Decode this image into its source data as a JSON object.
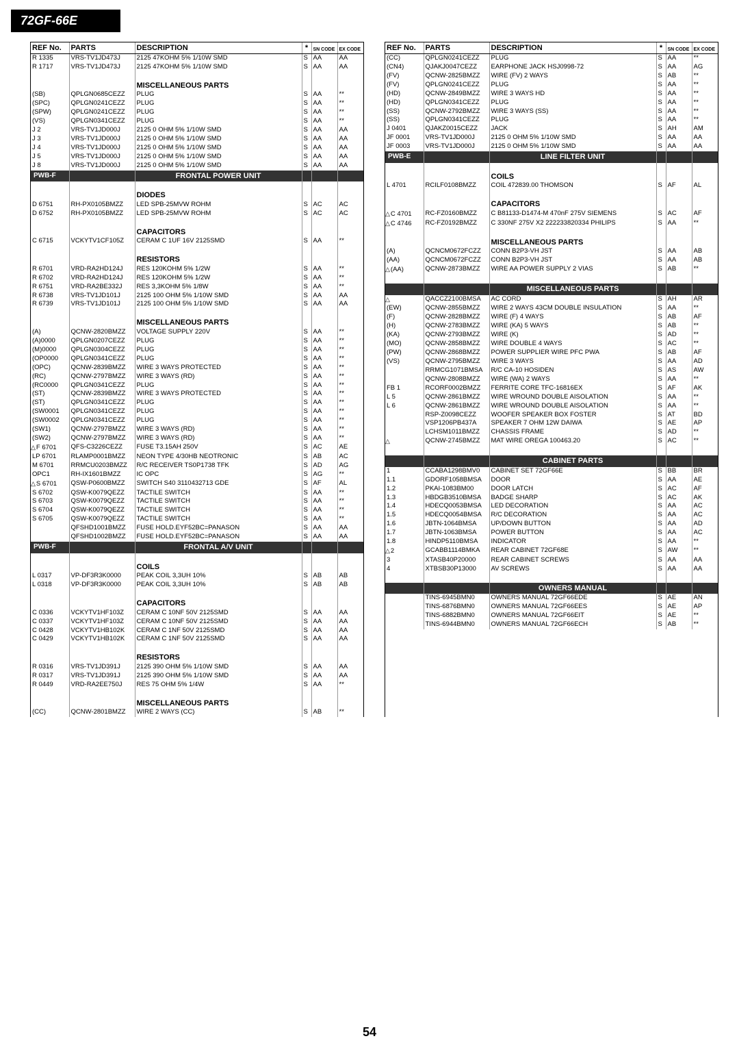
{
  "model": "72GF-66E",
  "page_number": "54",
  "columns": {
    "refno": "REF No.",
    "parts": "PARTS",
    "desc": "DESCRIPTION",
    "star": "*",
    "sn": "SN CODE",
    "ex": "EX CODE"
  },
  "left": [
    {
      "ref": "R 1335",
      "parts": "VRS-TV1JD473J",
      "desc": "2125  47KOHM 5% 1/10W SMD",
      "s": "S",
      "sn": "AA",
      "ex": "AA"
    },
    {
      "ref": "R 1717",
      "parts": "VRS-TV1JD473J",
      "desc": "2125  47KOHM 5% 1/10W SMD",
      "s": "S",
      "sn": "AA",
      "ex": "AA"
    },
    {
      "blank": true
    },
    {
      "sub": "MISCELLANEOUS PARTS"
    },
    {
      "ref": "(SB)",
      "parts": "QPLGN0685CEZZ",
      "desc": "PLUG",
      "s": "S",
      "sn": "AA",
      "ex": "**"
    },
    {
      "ref": "(SPC)",
      "parts": "QPLGN0241CEZZ",
      "desc": "PLUG",
      "s": "S",
      "sn": "AA",
      "ex": "**"
    },
    {
      "ref": "(SPW)",
      "parts": "QPLGN0241CEZZ",
      "desc": "PLUG",
      "s": "S",
      "sn": "AA",
      "ex": "**"
    },
    {
      "ref": "(VS)",
      "parts": "QPLGN0341CEZZ",
      "desc": "PLUG",
      "s": "S",
      "sn": "AA",
      "ex": "**"
    },
    {
      "ref": "J 2",
      "parts": "VRS-TV1JD000J",
      "desc": "2125   0 OHM 5% 1/10W SMD",
      "s": "S",
      "sn": "AA",
      "ex": "AA"
    },
    {
      "ref": "J 3",
      "parts": "VRS-TV1JD000J",
      "desc": "2125   0 OHM 5% 1/10W SMD",
      "s": "S",
      "sn": "AA",
      "ex": "AA"
    },
    {
      "ref": "J 4",
      "parts": "VRS-TV1JD000J",
      "desc": "2125   0 OHM 5% 1/10W SMD",
      "s": "S",
      "sn": "AA",
      "ex": "AA"
    },
    {
      "ref": "J 5",
      "parts": "VRS-TV1JD000J",
      "desc": "2125   0 OHM 5% 1/10W SMD",
      "s": "S",
      "sn": "AA",
      "ex": "AA"
    },
    {
      "ref": "J 8",
      "parts": "VRS-TV1JD000J",
      "desc": "2125   0 OHM 5% 1/10W SMD",
      "s": "S",
      "sn": "AA",
      "ex": "AA"
    },
    {
      "section": true,
      "ref": "PWB-F",
      "desc": "FRONTAL POWER UNIT"
    },
    {
      "blank": true
    },
    {
      "sub": "DIODES"
    },
    {
      "ref": "D 6751",
      "parts": "RH-PX0105BMZZ",
      "desc": "LED SPB-25MVW ROHM",
      "s": "S",
      "sn": "AC",
      "ex": "AC"
    },
    {
      "ref": "D 6752",
      "parts": "RH-PX0105BMZZ",
      "desc": "LED SPB-25MVW ROHM",
      "s": "S",
      "sn": "AC",
      "ex": "AC"
    },
    {
      "blank": true
    },
    {
      "sub": "CAPACITORS"
    },
    {
      "ref": "C 6715",
      "parts": "VCKYTV1CF105Z",
      "desc": "CERAM C   1UF 16V 2125SMD",
      "s": "S",
      "sn": "AA",
      "ex": "**"
    },
    {
      "blank": true
    },
    {
      "sub": "RESISTORS"
    },
    {
      "ref": "R 6701",
      "parts": "VRD-RA2HD124J",
      "desc": "RES  120KOHM  5%  1/2W",
      "s": "S",
      "sn": "AA",
      "ex": "**"
    },
    {
      "ref": "R 6702",
      "parts": "VRD-RA2HD124J",
      "desc": "RES  120KOHM  5%  1/2W",
      "s": "S",
      "sn": "AA",
      "ex": "**"
    },
    {
      "ref": "R 6751",
      "parts": "VRD-RA2BE332J",
      "desc": "RES  3,3KOHM  5%  1/8W",
      "s": "S",
      "sn": "AA",
      "ex": "**"
    },
    {
      "ref": "R 6738",
      "parts": "VRS-TV1JD101J",
      "desc": "2125 100 OHM 5% 1/10W SMD",
      "s": "S",
      "sn": "AA",
      "ex": "AA"
    },
    {
      "ref": "R 6739",
      "parts": "VRS-TV1JD101J",
      "desc": "2125 100 OHM 5% 1/10W SMD",
      "s": "S",
      "sn": "AA",
      "ex": "AA"
    },
    {
      "blank": true
    },
    {
      "sub": "MISCELLANEOUS PARTS"
    },
    {
      "ref": "(A)",
      "parts": "QCNW-2820BMZZ",
      "desc": "VOLTAGE SUPPLY 220V",
      "s": "S",
      "sn": "AA",
      "ex": "**"
    },
    {
      "ref": "(A)0000",
      "parts": "QPLGN0207CEZZ",
      "desc": "PLUG",
      "s": "S",
      "sn": "AA",
      "ex": "**"
    },
    {
      "ref": "(M)0000",
      "parts": "QPLGN0304CEZZ",
      "desc": "PLUG",
      "s": "S",
      "sn": "AA",
      "ex": "**"
    },
    {
      "ref": "(OP0000",
      "parts": "QPLGN0341CEZZ",
      "desc": "PLUG",
      "s": "S",
      "sn": "AA",
      "ex": "**"
    },
    {
      "ref": "(OPC)",
      "parts": "QCNW-2839BMZZ",
      "desc": "WIRE 3 WAYS PROTECTED",
      "s": "S",
      "sn": "AA",
      "ex": "**"
    },
    {
      "ref": "(RC)",
      "parts": "QCNW-2797BMZZ",
      "desc": "WIRE  3 WAYS (RD)",
      "s": "S",
      "sn": "AA",
      "ex": "**"
    },
    {
      "ref": "(RC0000",
      "parts": "QPLGN0341CEZZ",
      "desc": "PLUG",
      "s": "S",
      "sn": "AA",
      "ex": "**"
    },
    {
      "ref": "(ST)",
      "parts": "QCNW-2839BMZZ",
      "desc": "WIRE 3 WAYS PROTECTED",
      "s": "S",
      "sn": "AA",
      "ex": "**"
    },
    {
      "ref": "(ST)",
      "parts": "QPLGN0341CEZZ",
      "desc": "PLUG",
      "s": "S",
      "sn": "AA",
      "ex": "**"
    },
    {
      "ref": "(SW0001",
      "parts": "QPLGN0341CEZZ",
      "desc": "PLUG",
      "s": "S",
      "sn": "AA",
      "ex": "**"
    },
    {
      "ref": "(SW0002",
      "parts": "QPLGN0341CEZZ",
      "desc": "PLUG",
      "s": "S",
      "sn": "AA",
      "ex": "**"
    },
    {
      "ref": "(SW1)",
      "parts": "QCNW-2797BMZZ",
      "desc": "WIRE  3 WAYS (RD)",
      "s": "S",
      "sn": "AA",
      "ex": "**"
    },
    {
      "ref": "(SW2)",
      "parts": "QCNW-2797BMZZ",
      "desc": "WIRE  3 WAYS (RD)",
      "s": "S",
      "sn": "AA",
      "ex": "**"
    },
    {
      "ref": "F 6701",
      "tri": true,
      "parts": "QFS-C3226CEZZ",
      "desc": "FUSE T3.15AH 250V",
      "s": "S",
      "sn": "AC",
      "ex": "AE"
    },
    {
      "ref": "LP 6701",
      "parts": "RLAMP0001BMZZ",
      "desc": "NEON TYPE 4/30HB NEOTRONIC",
      "s": "S",
      "sn": "AB",
      "ex": "AC"
    },
    {
      "ref": "M 6701",
      "parts": "RRMCU0203BMZZ",
      "desc": "R/C RECEIVER TS0P1738 TFK",
      "s": "S",
      "sn": "AD",
      "ex": "AG"
    },
    {
      "ref": "OPC1",
      "parts": "RH-IX1601BMZZ",
      "desc": "IC OPC",
      "s": "S",
      "sn": "AG",
      "ex": "**"
    },
    {
      "ref": "S 6701",
      "tri": true,
      "parts": "QSW-P0600BMZZ",
      "desc": "SWITCH S40 3110432713 GDE",
      "s": "S",
      "sn": "AF",
      "ex": "AL"
    },
    {
      "ref": "S 6702",
      "parts": "QSW-K0079QEZZ",
      "desc": "TACTILE SWITCH",
      "s": "S",
      "sn": "AA",
      "ex": "**"
    },
    {
      "ref": "S 6703",
      "parts": "QSW-K0079QEZZ",
      "desc": "TACTILE SWITCH",
      "s": "S",
      "sn": "AA",
      "ex": "**"
    },
    {
      "ref": "S 6704",
      "parts": "QSW-K0079QEZZ",
      "desc": "TACTILE SWITCH",
      "s": "S",
      "sn": "AA",
      "ex": "**"
    },
    {
      "ref": "S 6705",
      "parts": "QSW-K0079QEZZ",
      "desc": "TACTILE SWITCH",
      "s": "S",
      "sn": "AA",
      "ex": "**"
    },
    {
      "ref": "",
      "parts": "QFSHD1001BMZZ",
      "desc": "FUSE HOLD.EYF52BC=PANASON",
      "s": "S",
      "sn": "AA",
      "ex": "AA"
    },
    {
      "ref": "",
      "parts": "QFSHD1002BMZZ",
      "desc": "FUSE HOLD.EYF52BC=PANASON",
      "s": "S",
      "sn": "AA",
      "ex": "AA"
    },
    {
      "section": true,
      "ref": "PWB-F",
      "desc": "FRONTAL A/V UNIT"
    },
    {
      "blank": true
    },
    {
      "sub": "COILS"
    },
    {
      "ref": "L 0317",
      "parts": "VP-DF3R3K0000",
      "desc": "PEAK  COIL 3,3UH 10%",
      "s": "S",
      "sn": "AB",
      "ex": "AB"
    },
    {
      "ref": "L 0318",
      "parts": "VP-DF3R3K0000",
      "desc": "PEAK  COIL 3,3UH 10%",
      "s": "S",
      "sn": "AB",
      "ex": "AB"
    },
    {
      "blank": true
    },
    {
      "sub": "CAPACITORS"
    },
    {
      "ref": "C 0336",
      "parts": "VCKYTV1HF103Z",
      "desc": "CERAM C  10NF 50V 2125SMD",
      "s": "S",
      "sn": "AA",
      "ex": "AA"
    },
    {
      "ref": "C 0337",
      "parts": "VCKYTV1HF103Z",
      "desc": "CERAM C  10NF 50V 2125SMD",
      "s": "S",
      "sn": "AA",
      "ex": "AA"
    },
    {
      "ref": "C 0428",
      "parts": "VCKYTV1HB102K",
      "desc": "CERAM C   1NF 50V 2125SMD",
      "s": "S",
      "sn": "AA",
      "ex": "AA"
    },
    {
      "ref": "C 0429",
      "parts": "VCKYTV1HB102K",
      "desc": "CERAM C   1NF 50V 2125SMD",
      "s": "S",
      "sn": "AA",
      "ex": "AA"
    },
    {
      "blank": true
    },
    {
      "sub": "RESISTORS"
    },
    {
      "ref": "R 0316",
      "parts": "VRS-TV1JD391J",
      "desc": "2125 390 OHM 5% 1/10W SMD",
      "s": "S",
      "sn": "AA",
      "ex": "AA"
    },
    {
      "ref": "R 0317",
      "parts": "VRS-TV1JD391J",
      "desc": "2125 390 OHM 5% 1/10W SMD",
      "s": "S",
      "sn": "AA",
      "ex": "AA"
    },
    {
      "ref": "R 0449",
      "parts": "VRD-RA2EE750J",
      "desc": "RES  75 OHM  5%  1/4W",
      "s": "S",
      "sn": "AA",
      "ex": "**"
    },
    {
      "blank": true
    },
    {
      "sub": "MISCELLANEOUS PARTS"
    },
    {
      "ref": "(CC)",
      "parts": "QCNW-2801BMZZ",
      "desc": "WIRE 2 WAYS (CC)",
      "s": "S",
      "sn": "AB",
      "ex": "**"
    }
  ],
  "right": [
    {
      "ref": "(CC)",
      "parts": "QPLGN0241CEZZ",
      "desc": "PLUG",
      "s": "S",
      "sn": "AA",
      "ex": "**"
    },
    {
      "ref": "(CN4)",
      "parts": "QJAKJ0047CEZZ",
      "desc": "EARPHONE JACK HSJ0998-72",
      "s": "S",
      "sn": "AA",
      "ex": "AG"
    },
    {
      "ref": "(FV)",
      "parts": "QCNW-2825BMZZ",
      "desc": "WIRE (FV) 2 WAYS",
      "s": "S",
      "sn": "AB",
      "ex": "**"
    },
    {
      "ref": "(FV)",
      "parts": "QPLGN0241CEZZ",
      "desc": "PLUG",
      "s": "S",
      "sn": "AA",
      "ex": "**"
    },
    {
      "ref": "(HD)",
      "parts": "QCNW-2849BMZZ",
      "desc": "WIRE 3 WAYS HD",
      "s": "S",
      "sn": "AA",
      "ex": "**"
    },
    {
      "ref": "(HD)",
      "parts": "QPLGN0341CEZZ",
      "desc": "PLUG",
      "s": "S",
      "sn": "AA",
      "ex": "**"
    },
    {
      "ref": "(SS)",
      "parts": "QCNW-2792BMZZ",
      "desc": "WIRE  3 WAYS (SS)",
      "s": "S",
      "sn": "AA",
      "ex": "**"
    },
    {
      "ref": "(SS)",
      "parts": "QPLGN0341CEZZ",
      "desc": "PLUG",
      "s": "S",
      "sn": "AA",
      "ex": "**"
    },
    {
      "ref": "J 0401",
      "parts": "QJAKZ0015CEZZ",
      "desc": "JACK",
      "s": "S",
      "sn": "AH",
      "ex": "AM"
    },
    {
      "ref": "JF 0001",
      "parts": "VRS-TV1JD000J",
      "desc": "2125   0 OHM 5% 1/10W SMD",
      "s": "S",
      "sn": "AA",
      "ex": "AA"
    },
    {
      "ref": "JF 0003",
      "parts": "VRS-TV1JD000J",
      "desc": "2125   0 OHM 5% 1/10W SMD",
      "s": "S",
      "sn": "AA",
      "ex": "AA"
    },
    {
      "section": true,
      "ref": "PWB-E",
      "desc": "LINE FILTER UNIT"
    },
    {
      "blank": true
    },
    {
      "sub": "COILS"
    },
    {
      "ref": "L 4701",
      "parts": "RCILF0108BMZZ",
      "desc": "COIL 472839.00 THOMSON",
      "s": "S",
      "sn": "AF",
      "ex": "AL"
    },
    {
      "blank": true
    },
    {
      "sub": "CAPACITORS"
    },
    {
      "ref": "C 4701",
      "tri": true,
      "parts": "RC-FZ0160BMZZ",
      "desc": "C B81133-D1474-M 470nF 275V SIEMENS",
      "s": "S",
      "sn": "AC",
      "ex": "AF"
    },
    {
      "ref": "C 4746",
      "tri": true,
      "parts": "RC-FZ0192BMZZ",
      "desc": "C 330NF 275V X2 222233820334 PHILIPS",
      "s": "S",
      "sn": "AA",
      "ex": "**"
    },
    {
      "blank": true
    },
    {
      "sub": "MISCELLANEOUS PARTS"
    },
    {
      "ref": "(A)",
      "parts": "QCNCM0672FCZZ",
      "desc": "CONN B2P3-VH JST",
      "s": "S",
      "sn": "AA",
      "ex": "AB"
    },
    {
      "ref": "(AA)",
      "parts": "QCNCM0672FCZZ",
      "desc": "CONN B2P3-VH JST",
      "s": "S",
      "sn": "AA",
      "ex": "AB"
    },
    {
      "ref": "(AA)",
      "tri": true,
      "parts": "QCNW-2873BMZZ",
      "desc": "WIRE AA POWER SUPPLY 2 VIAS",
      "s": "S",
      "sn": "AB",
      "ex": "**"
    },
    {
      "blank": true
    },
    {
      "section": true,
      "ref": "",
      "desc": "MISCELLANEOUS PARTS"
    },
    {
      "ref": "",
      "tri": true,
      "parts": "QACCZ2100BMSA",
      "desc": "AC CORD",
      "s": "S",
      "sn": "AH",
      "ex": "AR"
    },
    {
      "ref": "(EW)",
      "parts": "QCNW-2855BMZZ",
      "desc": "WIRE 2 WAYS 43CM DOUBLE INSULATION",
      "s": "S",
      "sn": "AA",
      "ex": "**"
    },
    {
      "ref": "(F)",
      "parts": "QCNW-2828BMZZ",
      "desc": "WIRE (F) 4 WAYS",
      "s": "S",
      "sn": "AB",
      "ex": "AF"
    },
    {
      "ref": "(H)",
      "parts": "QCNW-2783BMZZ",
      "desc": "WIRE (KA) 5 WAYS",
      "s": "S",
      "sn": "AB",
      "ex": "**"
    },
    {
      "ref": "(KA)",
      "parts": "QCNW-2793BMZZ",
      "desc": "WIRE (K)",
      "s": "S",
      "sn": "AD",
      "ex": "**"
    },
    {
      "ref": "(MO)",
      "parts": "QCNW-2858BMZZ",
      "desc": "WIRE DOUBLE 4 WAYS",
      "s": "S",
      "sn": "AC",
      "ex": "**"
    },
    {
      "ref": "(PW)",
      "parts": "QCNW-2868BMZZ",
      "desc": "POWER SUPPLIER WIRE PFC PWA",
      "s": "S",
      "sn": "AB",
      "ex": "AF"
    },
    {
      "ref": "(VS)",
      "parts": "QCNW-2795BMZZ",
      "desc": "WIRE  3 WAYS",
      "s": "S",
      "sn": "AA",
      "ex": "AD"
    },
    {
      "ref": "",
      "parts": "RRMCG1071BMSA",
      "desc": "R/C CA-10 HOSIDEN",
      "s": "S",
      "sn": "AS",
      "ex": "AW"
    },
    {
      "ref": "",
      "parts": "QCNW-2808BMZZ",
      "desc": "WIRE (WA) 2 WAYS",
      "s": "S",
      "sn": "AA",
      "ex": "**"
    },
    {
      "ref": "FB 1",
      "parts": "RCORF0002BMZZ",
      "desc": "FERRITE CORE TFC-16816EX",
      "s": "S",
      "sn": "AF",
      "ex": "AK"
    },
    {
      "ref": "L 5",
      "parts": "QCNW-2861BMZZ",
      "desc": "WIRE WROUND DOUBLE AISOLATION",
      "s": "S",
      "sn": "AA",
      "ex": "**"
    },
    {
      "ref": "L 6",
      "parts": "QCNW-2861BMZZ",
      "desc": "WIRE WROUND DOUBLE AISOLATION",
      "s": "S",
      "sn": "AA",
      "ex": "**"
    },
    {
      "ref": "",
      "parts": "RSP-Z0098CEZZ",
      "desc": "WOOFER SPEAKER BOX FOSTER",
      "s": "S",
      "sn": "AT",
      "ex": "BD"
    },
    {
      "ref": "",
      "parts": "VSP1206PB437A",
      "desc": "SPEAKER  7 OHM 12W DAIWA",
      "s": "S",
      "sn": "AE",
      "ex": "AP"
    },
    {
      "ref": "",
      "parts": "LCHSM1011BMZZ",
      "desc": "CHASSIS FRAME",
      "s": "S",
      "sn": "AD",
      "ex": "**"
    },
    {
      "ref": "",
      "tri": true,
      "parts": "QCNW-2745BMZZ",
      "desc": "MAT WIRE OREGA 100463.20",
      "s": "S",
      "sn": "AC",
      "ex": "**"
    },
    {
      "blank": true
    },
    {
      "section": true,
      "ref": "",
      "desc": "CABINET PARTS"
    },
    {
      "ref": "1",
      "parts": "CCABA1298BMV0",
      "desc": "CABINET SET 72GF66E",
      "s": "S",
      "sn": "BB",
      "ex": "BR"
    },
    {
      "ref": "1.1",
      "parts": "GDORF1058BMSA",
      "desc": "DOOR",
      "s": "S",
      "sn": "AA",
      "ex": "AE"
    },
    {
      "ref": "1.2",
      "parts": "PKAI-1083BM00",
      "desc": "DOOR LATCH",
      "s": "S",
      "sn": "AC",
      "ex": "AF"
    },
    {
      "ref": "1.3",
      "parts": "HBDGB3510BMSA",
      "desc": "BADGE SHARP",
      "s": "S",
      "sn": "AC",
      "ex": "AK"
    },
    {
      "ref": "1.4",
      "parts": "HDECQ0053BMSA",
      "desc": "LED DECORATION",
      "s": "S",
      "sn": "AA",
      "ex": "AC"
    },
    {
      "ref": "1.5",
      "parts": "HDECQ0054BMSA",
      "desc": "R/C DECORATION",
      "s": "S",
      "sn": "AA",
      "ex": "AC"
    },
    {
      "ref": "1.6",
      "parts": "JBTN-1064BMSA",
      "desc": "UP/DOWN BUTTON",
      "s": "S",
      "sn": "AA",
      "ex": "AD"
    },
    {
      "ref": "1.7",
      "parts": "JBTN-1063BMSA",
      "desc": "POWER BUTTON",
      "s": "S",
      "sn": "AA",
      "ex": "AC"
    },
    {
      "ref": "1.8",
      "parts": "HINDP5110BMSA",
      "desc": "INDICATOR",
      "s": "S",
      "sn": "AA",
      "ex": "**"
    },
    {
      "ref": "2",
      "tri": true,
      "parts": "GCABB1114BMKA",
      "desc": "REAR CABINET 72GF68E",
      "s": "S",
      "sn": "AW",
      "ex": "**"
    },
    {
      "ref": "3",
      "parts": "XTASB40P20000",
      "desc": "REAR CABINET SCREWS",
      "s": "S",
      "sn": "AA",
      "ex": "AA"
    },
    {
      "ref": "4",
      "parts": "XTBSB30P13000",
      "desc": "AV SCREWS",
      "s": "S",
      "sn": "AA",
      "ex": "AA"
    },
    {
      "blank": true
    },
    {
      "section": true,
      "ref": "",
      "desc": "OWNERS MANUAL"
    },
    {
      "ref": "",
      "parts": "TINS-6945BMN0",
      "desc": "OWNERS MANUAL 72GF66EDE",
      "s": "S",
      "sn": "AE",
      "ex": "AN"
    },
    {
      "ref": "",
      "parts": "TINS-6876BMN0",
      "desc": "OWNERS MANUAL 72GF66EES",
      "s": "S",
      "sn": "AE",
      "ex": "AP"
    },
    {
      "ref": "",
      "parts": "TINS-6882BMN0",
      "desc": "OWNERS MANUAL 72GF66EIT",
      "s": "S",
      "sn": "AE",
      "ex": "**"
    },
    {
      "ref": "",
      "parts": "TINS-6944BMN0",
      "desc": "OWNERS MANUAL 72GF66ECH",
      "s": "S",
      "sn": "AB",
      "ex": "**"
    }
  ]
}
